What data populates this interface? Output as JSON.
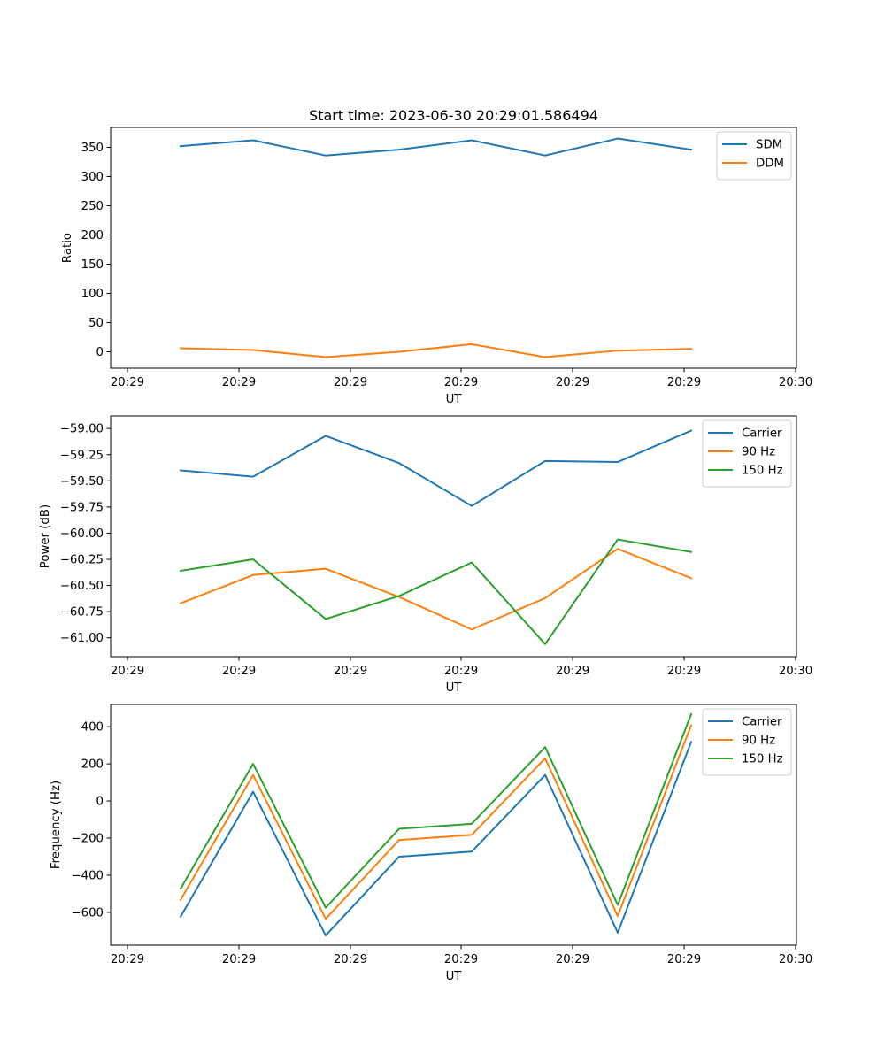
{
  "figure": {
    "title": "Start time: 2023-06-30 20:29:01.586494"
  },
  "chart_data": [
    {
      "type": "line",
      "title": "Start time: 2023-06-30 20:29:01.586494",
      "xlabel": "UT",
      "ylabel": "Ratio",
      "xticks": [
        "20:29",
        "20:29",
        "20:29",
        "20:29",
        "20:29",
        "20:29",
        "20:30"
      ],
      "yticks": [
        "0",
        "50",
        "100",
        "150",
        "200",
        "250",
        "300",
        "350"
      ],
      "ylim": [
        -28,
        384
      ],
      "legend_position": "top-right",
      "grid": false,
      "series": [
        {
          "name": "SDM",
          "color": "#1f77b4",
          "values": [
            352,
            362,
            336,
            346,
            362,
            336,
            365,
            346
          ]
        },
        {
          "name": "DDM",
          "color": "#ff7f0e",
          "values": [
            6,
            3,
            -9,
            0,
            13,
            -9,
            2,
            5
          ]
        }
      ]
    },
    {
      "type": "line",
      "xlabel": "UT",
      "ylabel": "Power (dB)",
      "xticks": [
        "20:29",
        "20:29",
        "20:29",
        "20:29",
        "20:29",
        "20:29",
        "20:30"
      ],
      "yticks": [
        "−61.00",
        "−60.75",
        "−60.50",
        "−60.25",
        "−60.00",
        "−59.75",
        "−59.50",
        "−59.25",
        "−59.00"
      ],
      "ylim": [
        -61.18,
        -58.88
      ],
      "legend_position": "top-right",
      "grid": false,
      "series": [
        {
          "name": "Carrier",
          "color": "#1f77b4",
          "values": [
            -59.4,
            -59.46,
            -59.07,
            -59.33,
            -59.74,
            -59.31,
            -59.32,
            -59.02
          ]
        },
        {
          "name": "90 Hz",
          "color": "#ff7f0e",
          "values": [
            -60.67,
            -60.4,
            -60.34,
            -60.61,
            -60.92,
            -60.62,
            -60.15,
            -60.43
          ]
        },
        {
          "name": "150 Hz",
          "color": "#2ca02c",
          "values": [
            -60.36,
            -60.25,
            -60.82,
            -60.6,
            -60.28,
            -61.06,
            -60.06,
            -60.18
          ]
        }
      ]
    },
    {
      "type": "line",
      "xlabel": "UT",
      "ylabel": "Frequency (Hz)",
      "xticks": [
        "20:29",
        "20:29",
        "20:29",
        "20:29",
        "20:29",
        "20:29",
        "20:30"
      ],
      "yticks": [
        "−600",
        "−400",
        "−200",
        "0",
        "200",
        "400"
      ],
      "ylim": [
        -777,
        520
      ],
      "legend_position": "top-right",
      "grid": false,
      "series": [
        {
          "name": "Carrier",
          "color": "#1f77b4",
          "values": [
            -623,
            50,
            -725,
            -300,
            -273,
            140,
            -710,
            318
          ]
        },
        {
          "name": "90 Hz",
          "color": "#ff7f0e",
          "values": [
            -533,
            140,
            -635,
            -210,
            -183,
            230,
            -620,
            408
          ]
        },
        {
          "name": "150 Hz",
          "color": "#2ca02c",
          "values": [
            -473,
            200,
            -575,
            -150,
            -123,
            290,
            -560,
            468
          ]
        }
      ]
    }
  ]
}
